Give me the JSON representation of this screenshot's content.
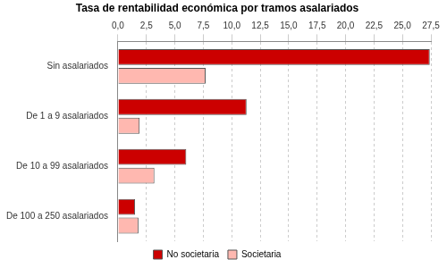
{
  "chart_data": {
    "type": "bar",
    "orientation": "horizontal",
    "title": "Tasa de rentabilidad económica por tramos asalariados",
    "categories": [
      "Sin asalariados",
      "De 1 a 9 asalariados",
      "De 10 a 99 asalariados",
      "De 100 a 250 asalariados"
    ],
    "series": [
      {
        "name": "No societaria",
        "color": "#cc0000",
        "values": [
          27.4,
          11.3,
          6.0,
          1.5
        ]
      },
      {
        "name": "Societaria",
        "color": "#ffb8b0",
        "values": [
          7.7,
          1.9,
          3.2,
          1.8
        ]
      }
    ],
    "xlim": [
      0,
      27.5
    ],
    "xticks": [
      {
        "value": 0,
        "label": "0,0"
      },
      {
        "value": 2.5,
        "label": "2,5"
      },
      {
        "value": 5,
        "label": "5,0"
      },
      {
        "value": 7.5,
        "label": "7,5"
      },
      {
        "value": 10,
        "label": "10,0"
      },
      {
        "value": 12.5,
        "label": "12,5"
      },
      {
        "value": 15,
        "label": "15,0"
      },
      {
        "value": 17.5,
        "label": "17,5"
      },
      {
        "value": 20,
        "label": "20,0"
      },
      {
        "value": 22.5,
        "label": "22,5"
      },
      {
        "value": 25,
        "label": "25,0"
      },
      {
        "value": 27.5,
        "label": "27,5"
      }
    ],
    "grid": true,
    "legend": "bottom"
  }
}
